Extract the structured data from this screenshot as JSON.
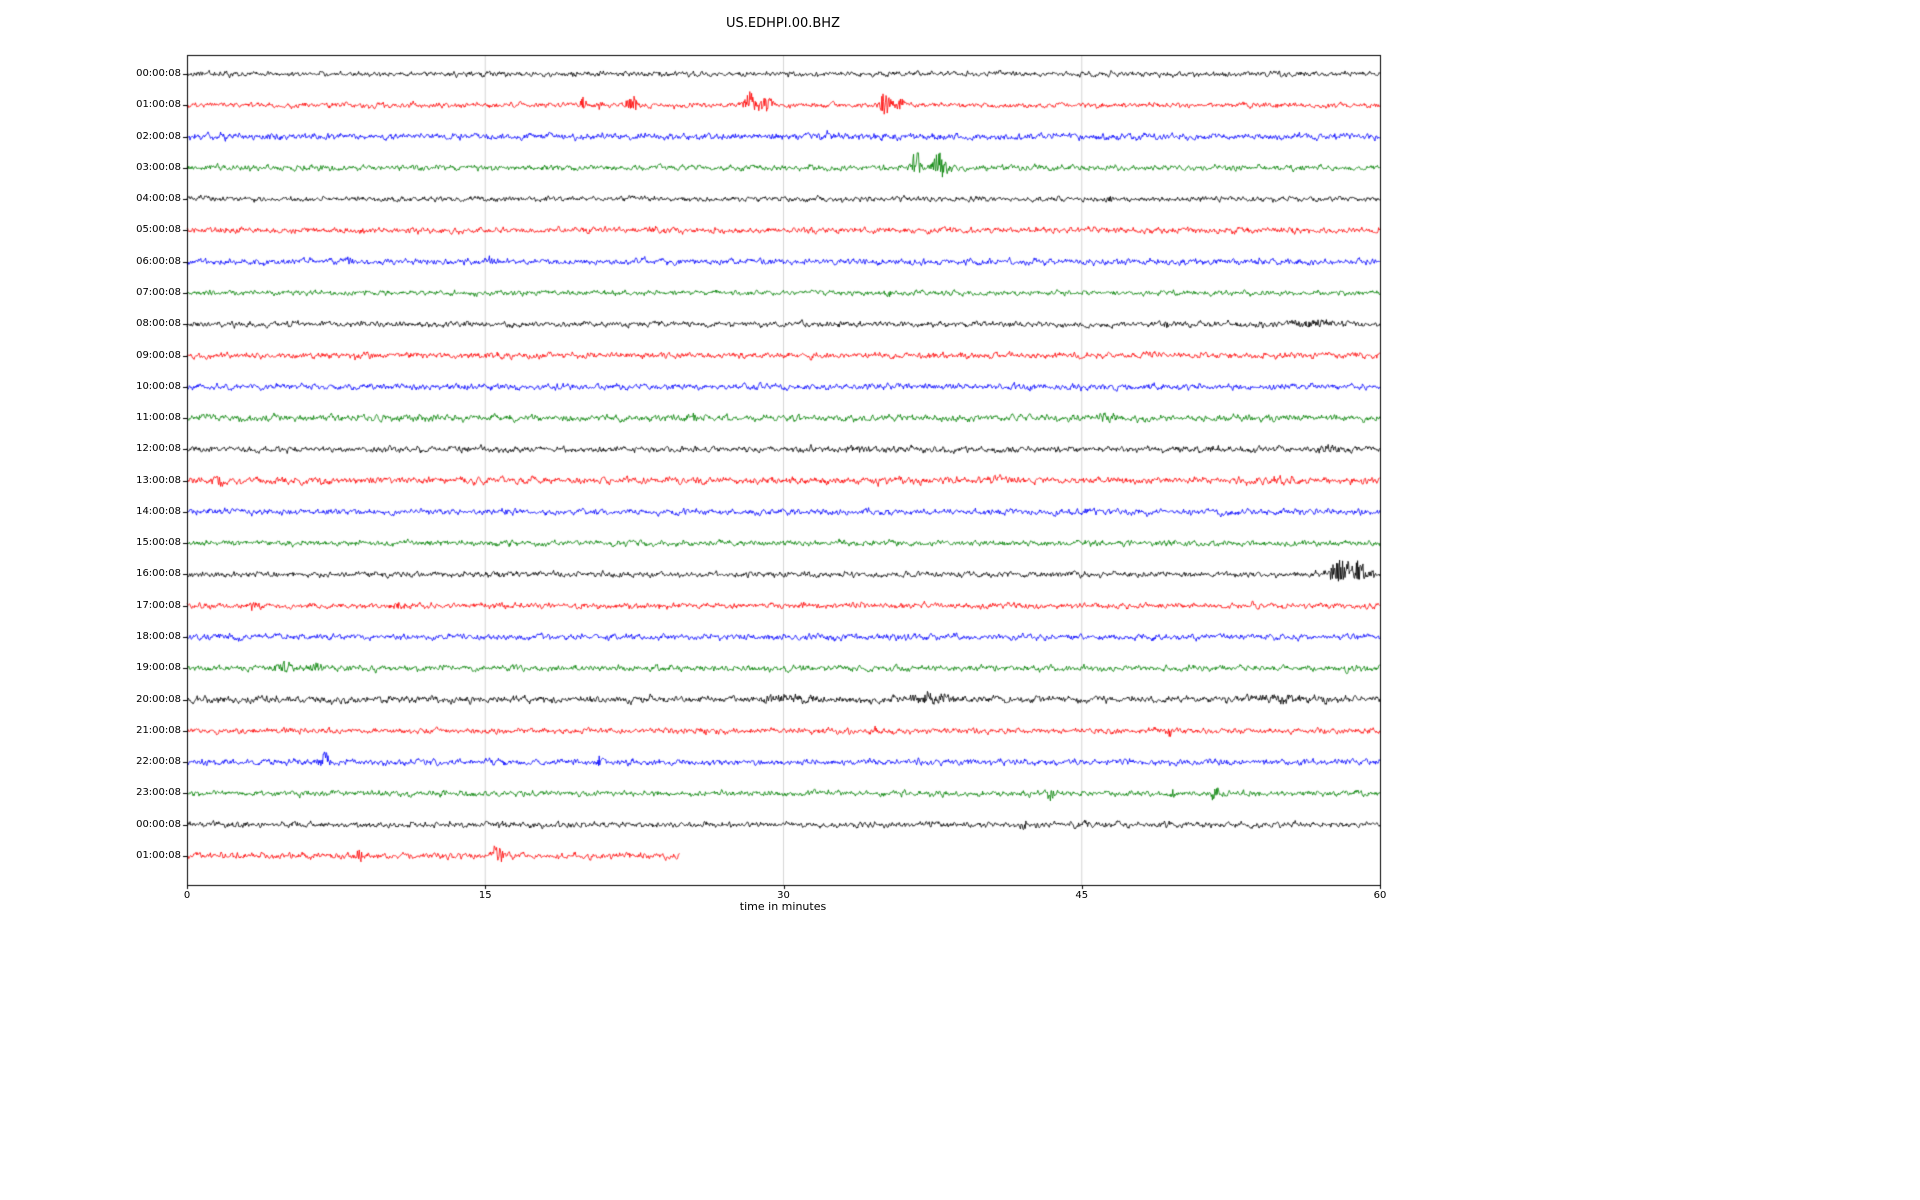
{
  "chart_data": {
    "type": "line",
    "title": "US.EDHPI.00.BHZ",
    "xlabel": "time in minutes",
    "x_range_minutes": [
      0,
      60
    ],
    "x_ticks": [
      0,
      15,
      30,
      45,
      60
    ],
    "grid_on": true,
    "grid_color": "#cccccc",
    "frame_color": "#000000",
    "color_cycle": [
      "#000000",
      "#ff0000",
      "#0000ff",
      "#008000"
    ],
    "events_format": "[minute, amplitude_px, sigma_minutes]",
    "rows": [
      {
        "label": "00:00:08",
        "color": "#000000",
        "noise_amp": 2.2,
        "duration_min": 60,
        "events": []
      },
      {
        "label": "01:00:08",
        "color": "#ff0000",
        "noise_amp": 2.2,
        "duration_min": 60,
        "events": [
          [
            19.9,
            6,
            0.2
          ],
          [
            20.7,
            5,
            0.15
          ],
          [
            22.4,
            9,
            0.2
          ],
          [
            28.4,
            14,
            0.25
          ],
          [
            29.2,
            9,
            0.2
          ],
          [
            35.1,
            15,
            0.2
          ],
          [
            35.9,
            7,
            0.2
          ]
        ]
      },
      {
        "label": "02:00:08",
        "color": "#0000ff",
        "noise_amp": 2.8,
        "duration_min": 60,
        "events": [
          [
            32.2,
            3,
            0.4
          ]
        ]
      },
      {
        "label": "03:00:08",
        "color": "#008000",
        "noise_amp": 2.4,
        "duration_min": 60,
        "events": [
          [
            36.7,
            18,
            0.2
          ],
          [
            37.9,
            19,
            0.25
          ]
        ]
      },
      {
        "label": "04:00:08",
        "color": "#000000",
        "noise_amp": 2.2,
        "duration_min": 60,
        "events": [
          [
            46.4,
            4,
            0.1
          ]
        ]
      },
      {
        "label": "05:00:08",
        "color": "#ff0000",
        "noise_amp": 2.6,
        "duration_min": 60,
        "events": [
          [
            3.5,
            3,
            0.3
          ],
          [
            23.5,
            4,
            0.1
          ]
        ]
      },
      {
        "label": "06:00:08",
        "color": "#0000ff",
        "noise_amp": 2.6,
        "duration_min": 60,
        "events": [
          [
            8.2,
            3,
            0.2
          ],
          [
            15.3,
            3,
            0.3
          ]
        ]
      },
      {
        "label": "07:00:08",
        "color": "#008000",
        "noise_amp": 2.2,
        "duration_min": 60,
        "events": [
          [
            35.3,
            -4,
            0.1
          ]
        ]
      },
      {
        "label": "08:00:08",
        "color": "#000000",
        "noise_amp": 2.4,
        "duration_min": 60,
        "events": [
          [
            49.2,
            -3,
            0.15
          ],
          [
            56.5,
            4,
            0.8
          ]
        ]
      },
      {
        "label": "09:00:08",
        "color": "#ff0000",
        "noise_amp": 2.6,
        "duration_min": 60,
        "events": [
          [
            8.5,
            3,
            0.3
          ]
        ]
      },
      {
        "label": "10:00:08",
        "color": "#0000ff",
        "noise_amp": 2.6,
        "duration_min": 60,
        "events": []
      },
      {
        "label": "11:00:08",
        "color": "#008000",
        "noise_amp": 2.8,
        "duration_min": 60,
        "events": [
          [
            25.4,
            4,
            0.3
          ],
          [
            46.2,
            4,
            0.4
          ]
        ]
      },
      {
        "label": "12:00:08",
        "color": "#000000",
        "noise_amp": 2.6,
        "duration_min": 60,
        "events": [
          [
            33.6,
            3,
            0.2
          ],
          [
            51.5,
            4,
            0.3
          ],
          [
            57.5,
            4,
            0.4
          ]
        ]
      },
      {
        "label": "13:00:08",
        "color": "#ff0000",
        "noise_amp": 3.0,
        "duration_min": 60,
        "events": [
          [
            1.7,
            -5,
            0.15
          ],
          [
            40.8,
            4,
            0.5
          ]
        ]
      },
      {
        "label": "14:00:08",
        "color": "#0000ff",
        "noise_amp": 2.6,
        "duration_min": 60,
        "events": []
      },
      {
        "label": "15:00:08",
        "color": "#008000",
        "noise_amp": 2.4,
        "duration_min": 60,
        "events": []
      },
      {
        "label": "16:00:08",
        "color": "#000000",
        "noise_amp": 2.4,
        "duration_min": 60,
        "events": [
          [
            57.8,
            8,
            0.5
          ],
          [
            58.6,
            9,
            0.5
          ],
          [
            59.3,
            6,
            0.3
          ]
        ]
      },
      {
        "label": "17:00:08",
        "color": "#ff0000",
        "noise_amp": 2.4,
        "duration_min": 60,
        "events": [
          [
            3.3,
            4,
            0.3
          ],
          [
            10.6,
            4,
            0.2
          ],
          [
            30.9,
            5,
            0.1
          ]
        ]
      },
      {
        "label": "18:00:08",
        "color": "#0000ff",
        "noise_amp": 2.6,
        "duration_min": 60,
        "events": []
      },
      {
        "label": "19:00:08",
        "color": "#008000",
        "noise_amp": 2.6,
        "duration_min": 60,
        "events": [
          [
            5.0,
            4,
            0.5
          ],
          [
            6.5,
            4,
            0.3
          ]
        ]
      },
      {
        "label": "20:00:08",
        "color": "#000000",
        "noise_amp": 3.0,
        "duration_min": 60,
        "events": [
          [
            30.5,
            4,
            1.0
          ],
          [
            37.2,
            5,
            0.8
          ],
          [
            55.0,
            3,
            1.5
          ]
        ]
      },
      {
        "label": "21:00:08",
        "color": "#ff0000",
        "noise_amp": 2.4,
        "duration_min": 60,
        "events": [
          [
            34.6,
            4,
            0.1
          ],
          [
            49.4,
            -6,
            0.12
          ]
        ]
      },
      {
        "label": "22:00:08",
        "color": "#0000ff",
        "noise_amp": 2.6,
        "duration_min": 60,
        "events": [
          [
            6.9,
            9,
            0.2
          ],
          [
            20.8,
            8,
            0.15
          ],
          [
            34.5,
            4,
            0.1
          ]
        ]
      },
      {
        "label": "23:00:08",
        "color": "#008000",
        "noise_amp": 2.4,
        "duration_min": 60,
        "events": [
          [
            43.5,
            -8,
            0.15
          ],
          [
            49.6,
            -5,
            0.12
          ],
          [
            51.7,
            -7,
            0.15
          ]
        ]
      },
      {
        "label": "00:00:08",
        "color": "#000000",
        "noise_amp": 2.4,
        "duration_min": 60,
        "events": [
          [
            15.8,
            3,
            0.3
          ],
          [
            42.1,
            -7,
            0.12
          ],
          [
            45.3,
            3,
            0.2
          ]
        ]
      },
      {
        "label": "01:00:08",
        "color": "#ff0000",
        "noise_amp": 2.6,
        "duration_min": 24.8,
        "events": [
          [
            8.7,
            -7,
            0.12
          ],
          [
            15.6,
            12,
            0.18
          ]
        ]
      }
    ]
  }
}
